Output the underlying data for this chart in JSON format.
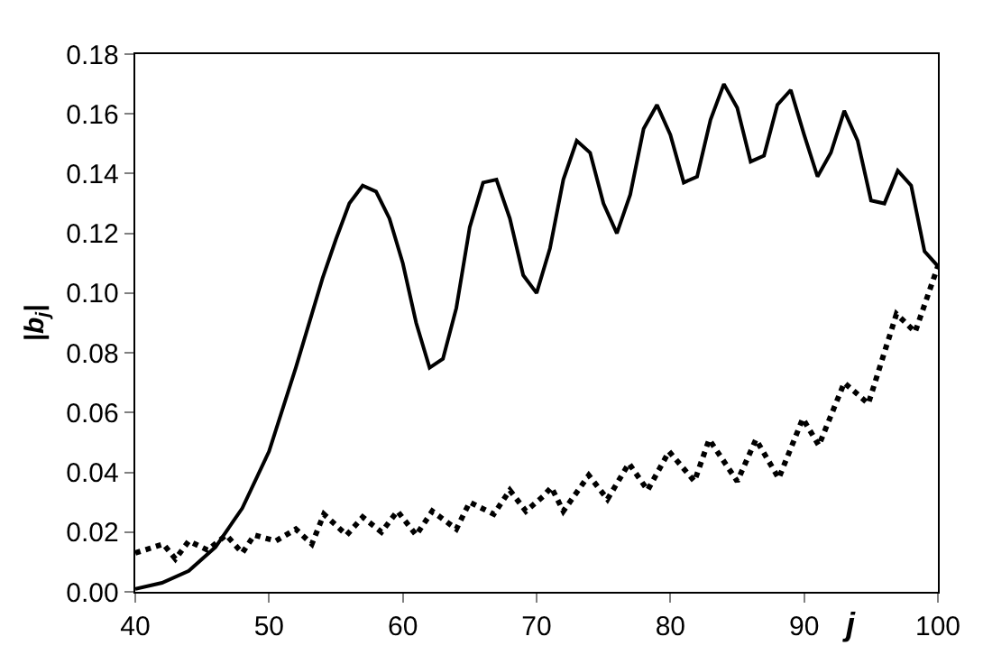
{
  "chart_data": {
    "type": "line",
    "xlabel": "j",
    "ylabel": "|b$_{j}$|",
    "xlim": [
      40,
      100
    ],
    "xticks": [
      40,
      50,
      60,
      70,
      80,
      90,
      100
    ],
    "ylim": [
      0,
      0.18
    ],
    "yticks": [
      {
        "value": 0,
        "label": "0.00"
      },
      {
        "value": 0.02,
        "label": "0.02"
      },
      {
        "value": 0.04,
        "label": "0.04"
      },
      {
        "value": 0.06,
        "label": "0.06"
      },
      {
        "value": 0.08,
        "label": "0.08"
      },
      {
        "value": 0.1,
        "label": "0.10"
      },
      {
        "value": 0.12,
        "label": "0.12"
      },
      {
        "value": 0.14,
        "label": "0.14"
      },
      {
        "value": 0.16,
        "label": "0.16"
      },
      {
        "value": 0.18,
        "label": "0.18"
      }
    ],
    "marker": "none",
    "series": [
      {
        "color": "#000000",
        "line_style": "solid",
        "x": [
          40,
          42,
          44,
          46,
          48,
          50,
          52,
          54,
          55,
          56,
          57,
          58,
          59,
          60,
          61,
          62,
          63,
          64,
          65,
          66,
          67,
          68,
          69,
          70,
          71,
          72,
          73,
          74,
          75,
          76,
          77,
          78,
          79,
          80,
          81,
          82,
          83,
          84,
          85,
          86,
          87,
          88,
          89,
          90,
          91,
          92,
          93,
          94,
          95,
          96,
          97,
          98,
          99,
          100
        ],
        "values": [
          0.001,
          0.003,
          0.007,
          0.015,
          0.028,
          0.047,
          0.075,
          0.105,
          0.118,
          0.13,
          0.136,
          0.134,
          0.125,
          0.11,
          0.09,
          0.075,
          0.078,
          0.095,
          0.122,
          0.137,
          0.138,
          0.125,
          0.106,
          0.1,
          0.115,
          0.138,
          0.151,
          0.147,
          0.13,
          0.12,
          0.133,
          0.155,
          0.163,
          0.153,
          0.137,
          0.139,
          0.158,
          0.17,
          0.162,
          0.144,
          0.146,
          0.163,
          0.168,
          0.153,
          0.139,
          0.147,
          0.161,
          0.151,
          0.131,
          0.13,
          0.141,
          0.136,
          0.114,
          0.109
        ]
      },
      {
        "color": "#000000",
        "line_style": "dotted",
        "x": [
          40,
          42.1,
          43,
          44,
          45.4,
          46.8,
          48,
          48.9,
          50.5,
          52,
          53.2,
          54.1,
          55.8,
          57,
          58.4,
          59.6,
          61,
          62.2,
          64,
          65,
          66.8,
          68,
          69.2,
          70.5,
          71.1,
          72,
          73.9,
          75.3,
          76.9,
          78.3,
          79.9,
          81.8,
          82.9,
          85,
          86.4,
          88.1,
          89.9,
          91.1,
          93,
          94.8,
          96.9,
          98.3,
          100
        ],
        "values": [
          0.013,
          0.016,
          0.011,
          0.017,
          0.014,
          0.019,
          0.013,
          0.019,
          0.017,
          0.021,
          0.016,
          0.026,
          0.019,
          0.025,
          0.02,
          0.027,
          0.019,
          0.027,
          0.021,
          0.03,
          0.026,
          0.034,
          0.027,
          0.032,
          0.035,
          0.027,
          0.039,
          0.031,
          0.043,
          0.034,
          0.047,
          0.037,
          0.051,
          0.037,
          0.051,
          0.038,
          0.058,
          0.049,
          0.07,
          0.063,
          0.093,
          0.087,
          0.109
        ]
      }
    ]
  }
}
